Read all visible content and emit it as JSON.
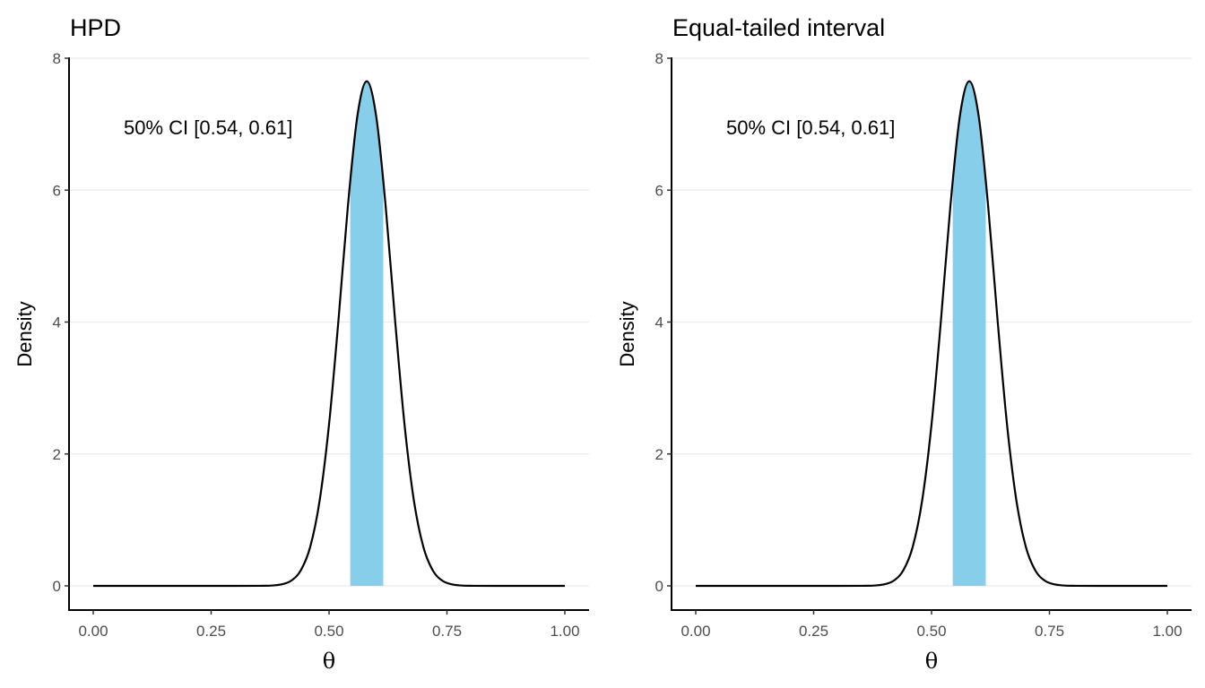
{
  "chart_data": [
    {
      "type": "area",
      "title": "HPD",
      "xlabel": "θ",
      "ylabel": "Density",
      "xlim": [
        0,
        1
      ],
      "ylim": [
        0,
        8
      ],
      "xticks": [
        "0.00",
        "0.25",
        "0.50",
        "0.75",
        "1.00"
      ],
      "yticks": [
        "0",
        "2",
        "4",
        "6",
        "8"
      ],
      "grid": "horizontal major",
      "annotation": "50% CI [0.54, 0.61]",
      "interval": [
        0.545,
        0.615
      ],
      "fill_color": "#87CEEB",
      "line_color": "#000000",
      "x": [
        0,
        0.3,
        0.36,
        0.38,
        0.4,
        0.42,
        0.44,
        0.46,
        0.48,
        0.5,
        0.52,
        0.54,
        0.56,
        0.58,
        0.6,
        0.62,
        0.64,
        0.66,
        0.68,
        0.7,
        0.72,
        0.74,
        0.76,
        0.78,
        0.8,
        0.85,
        1.0
      ],
      "y": [
        0,
        0,
        0.0014,
        0.006,
        0.024,
        0.08,
        0.234,
        0.59,
        1.29,
        2.45,
        4.03,
        5.76,
        7.12,
        7.65,
        7.12,
        5.76,
        4.03,
        2.45,
        1.29,
        0.59,
        0.234,
        0.08,
        0.024,
        0.006,
        0.0014,
        0,
        0
      ]
    },
    {
      "type": "area",
      "title": "Equal-tailed interval",
      "xlabel": "θ",
      "ylabel": "Density",
      "xlim": [
        0,
        1
      ],
      "ylim": [
        0,
        8
      ],
      "xticks": [
        "0.00",
        "0.25",
        "0.50",
        "0.75",
        "1.00"
      ],
      "yticks": [
        "0",
        "2",
        "4",
        "6",
        "8"
      ],
      "grid": "horizontal major",
      "annotation": "50% CI [0.54, 0.61]",
      "interval": [
        0.545,
        0.615
      ],
      "fill_color": "#87CEEB",
      "line_color": "#000000",
      "x": [
        0,
        0.3,
        0.36,
        0.38,
        0.4,
        0.42,
        0.44,
        0.46,
        0.48,
        0.5,
        0.52,
        0.54,
        0.56,
        0.58,
        0.6,
        0.62,
        0.64,
        0.66,
        0.68,
        0.7,
        0.72,
        0.74,
        0.76,
        0.78,
        0.8,
        0.85,
        1.0
      ],
      "y": [
        0,
        0,
        0.0014,
        0.006,
        0.024,
        0.08,
        0.234,
        0.59,
        1.29,
        2.45,
        4.03,
        5.76,
        7.12,
        7.65,
        7.12,
        5.76,
        4.03,
        2.45,
        1.29,
        0.59,
        0.234,
        0.08,
        0.024,
        0.006,
        0.0014,
        0,
        0
      ]
    }
  ]
}
